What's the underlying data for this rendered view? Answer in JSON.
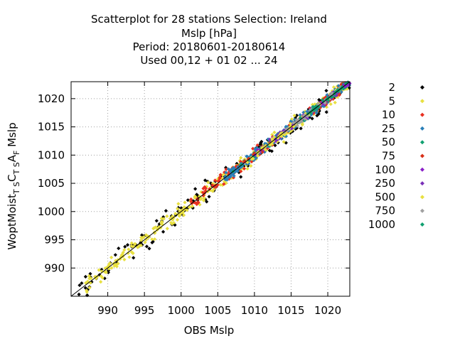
{
  "chart_data": {
    "type": "scatter",
    "title_lines": [
      "Scatterplot for   28 stations Selection: Ireland",
      "Mslp [hPa]",
      "Period: 20180601-20180614",
      "Used  00,12  + 01 02 ... 24"
    ],
    "xlabel": "OBS Mslp",
    "ylabel_parts": {
      "base": "WoptMoist",
      "sub1": "T S",
      "mid": "C",
      "sub2": "T S",
      "mid2": "A",
      "sub3": "F",
      "tail": " Mslp"
    },
    "xlim": [
      985,
      1023
    ],
    "ylim": [
      985,
      1023
    ],
    "xticks": [
      990,
      995,
      1000,
      1005,
      1010,
      1015,
      1020
    ],
    "yticks": [
      990,
      995,
      1000,
      1005,
      1010,
      1015,
      1020
    ],
    "grid": true,
    "diagonal": true,
    "legend_position": "right",
    "series": [
      {
        "name": "2",
        "color": "#000000",
        "xr": [
          986,
          1023
        ],
        "spread": 1.6,
        "n": 170
      },
      {
        "name": "5",
        "color": "#e8e040",
        "xr": [
          987,
          1023
        ],
        "spread": 1.1,
        "n": 330
      },
      {
        "name": "10",
        "color": "#e83020",
        "xr": [
          1001,
          1023
        ],
        "spread": 0.9,
        "n": 150
      },
      {
        "name": "25",
        "color": "#2a7fb8",
        "xr": [
          1006,
          1023
        ],
        "spread": 0.7,
        "n": 220
      },
      {
        "name": "50",
        "color": "#10a070",
        "xr": [
          1007,
          1023
        ],
        "spread": 0.5,
        "n": 50
      },
      {
        "name": "75",
        "color": "#d83018",
        "xr": [
          1008,
          1022
        ],
        "spread": 0.6,
        "n": 40
      },
      {
        "name": "100",
        "color": "#8a20c8",
        "xr": [
          1010,
          1023
        ],
        "spread": 0.5,
        "n": 60
      },
      {
        "name": "250",
        "color": "#7a30b8",
        "xr": [
          1012,
          1022
        ],
        "spread": 0.5,
        "n": 40
      },
      {
        "name": "500",
        "color": "#e8e040",
        "xr": [
          1009,
          1022
        ],
        "spread": 0.5,
        "n": 60
      },
      {
        "name": "750",
        "color": "#a0a0a0",
        "xr": [
          1014,
          1022
        ],
        "spread": 0.4,
        "n": 40
      },
      {
        "name": "1000",
        "color": "#10a070",
        "xr": [
          1016,
          1023
        ],
        "spread": 0.3,
        "n": 30
      }
    ]
  }
}
